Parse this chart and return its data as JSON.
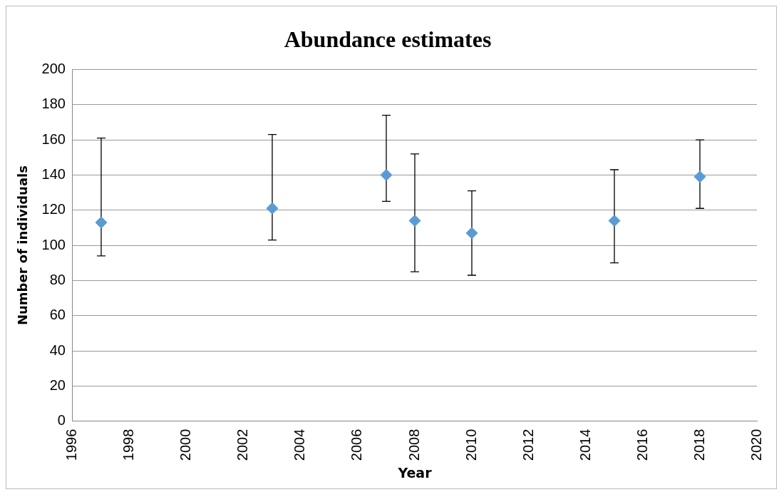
{
  "chart_data": {
    "type": "scatter",
    "title": "Abundance estimates",
    "xlabel": "Year",
    "ylabel": "Number of individuals",
    "x": [
      1997,
      2003,
      2007,
      2008,
      2010,
      2015,
      2018
    ],
    "series": [
      {
        "color": "#5b9bd5",
        "values": [
          113,
          121,
          140,
          114,
          107,
          114,
          139
        ],
        "errors": [
          [
            94,
            161
          ],
          [
            103,
            163
          ],
          [
            125,
            174
          ],
          [
            85,
            152
          ],
          [
            83,
            131
          ],
          [
            90,
            143
          ],
          [
            121,
            160
          ]
        ]
      }
    ],
    "xlim": [
      1996,
      2020
    ],
    "xticks": [
      1996,
      1998,
      2000,
      2002,
      2004,
      2006,
      2008,
      2010,
      2012,
      2014,
      2016,
      2018,
      2020
    ],
    "ylim": [
      0,
      200
    ],
    "yticks": [
      0,
      20,
      40,
      60,
      80,
      100,
      120,
      140,
      160,
      180,
      200
    ],
    "grid": "y",
    "marker": "diamond",
    "legend": false
  }
}
